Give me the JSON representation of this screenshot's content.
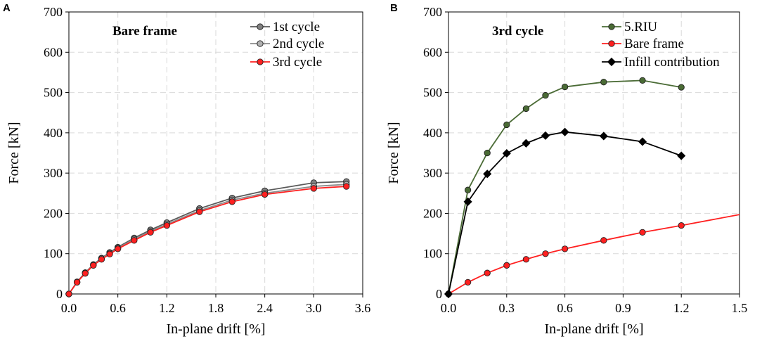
{
  "chart_data": [
    {
      "panel_label": "A",
      "type": "line",
      "title": "Bare frame",
      "xlabel": "In-plane drift [%]",
      "ylabel": "Force [kN]",
      "xlim": [
        0,
        3.6
      ],
      "ylim": [
        0,
        700
      ],
      "xticks": [
        "0.0",
        "0.6",
        "1.2",
        "1.8",
        "2.4",
        "3.0",
        "3.6"
      ],
      "yticks": [
        "0",
        "100",
        "200",
        "300",
        "400",
        "500",
        "600",
        "700"
      ],
      "grid": true,
      "legend_position": "top-right",
      "series": [
        {
          "name": "1st cycle",
          "color": "#5a5a5a",
          "marker": "circle",
          "marker_fill": "#808080",
          "x": [
            0,
            0.1,
            0.2,
            0.3,
            0.4,
            0.5,
            0.6,
            0.8,
            1.0,
            1.2,
            1.6,
            2.0,
            2.4,
            3.0,
            3.4
          ],
          "y": [
            0,
            30,
            53,
            73,
            89,
            103,
            116,
            139,
            159,
            177,
            212,
            238,
            256,
            276,
            279
          ]
        },
        {
          "name": "2nd cycle",
          "color": "#8c8c8c",
          "marker": "circle",
          "marker_fill": "#b0b0b0",
          "x": [
            0,
            0.1,
            0.2,
            0.3,
            0.4,
            0.5,
            0.6,
            0.8,
            1.0,
            1.2,
            1.6,
            2.0,
            2.4,
            3.0,
            3.4
          ],
          "y": [
            0,
            29,
            52,
            72,
            88,
            101,
            114,
            136,
            156,
            173,
            207,
            233,
            250,
            267,
            272
          ]
        },
        {
          "name": "3rd cycle",
          "color": "#ff2020",
          "marker": "circle",
          "marker_fill": "#ff2020",
          "x": [
            0,
            0.1,
            0.2,
            0.3,
            0.4,
            0.5,
            0.6,
            0.8,
            1.0,
            1.2,
            1.6,
            2.0,
            2.4,
            3.0,
            3.4
          ],
          "y": [
            0,
            29,
            51,
            71,
            86,
            99,
            112,
            133,
            153,
            170,
            204,
            229,
            247,
            262,
            267
          ]
        }
      ]
    },
    {
      "panel_label": "B",
      "type": "line",
      "title": "3rd cycle",
      "xlabel": "In-plane drift [%]",
      "ylabel": "Force [kN]",
      "xlim": [
        0,
        1.5
      ],
      "ylim": [
        0,
        700
      ],
      "xticks": [
        "0.0",
        "0.3",
        "0.6",
        "0.9",
        "1.2",
        "1.5"
      ],
      "yticks": [
        "0",
        "100",
        "200",
        "300",
        "400",
        "500",
        "600",
        "700"
      ],
      "grid": true,
      "legend_position": "top-right",
      "series": [
        {
          "name": "5.RIU",
          "color": "#4a6b35",
          "marker": "circle",
          "marker_fill": "#4a6b35",
          "x": [
            0,
            0.1,
            0.2,
            0.3,
            0.4,
            0.5,
            0.6,
            0.8,
            1.0,
            1.2
          ],
          "y": [
            0,
            258,
            350,
            420,
            460,
            493,
            514,
            526,
            530,
            513
          ]
        },
        {
          "name": "Bare frame",
          "color": "#ff2020",
          "marker": "circle",
          "marker_fill": "#ff2020",
          "x": [
            0,
            0.1,
            0.2,
            0.3,
            0.4,
            0.5,
            0.6,
            0.8,
            1.0,
            1.2,
            1.5
          ],
          "y": [
            0,
            29,
            52,
            71,
            86,
            100,
            112,
            133,
            153,
            170,
            197
          ],
          "marker_count": 10
        },
        {
          "name": "Infill contribution",
          "color": "#000000",
          "marker": "diamond",
          "marker_fill": "#000000",
          "x": [
            0,
            0.1,
            0.2,
            0.3,
            0.4,
            0.5,
            0.6,
            0.8,
            1.0,
            1.2
          ],
          "y": [
            0,
            229,
            298,
            349,
            374,
            393,
            402,
            392,
            378,
            343
          ]
        }
      ]
    }
  ]
}
